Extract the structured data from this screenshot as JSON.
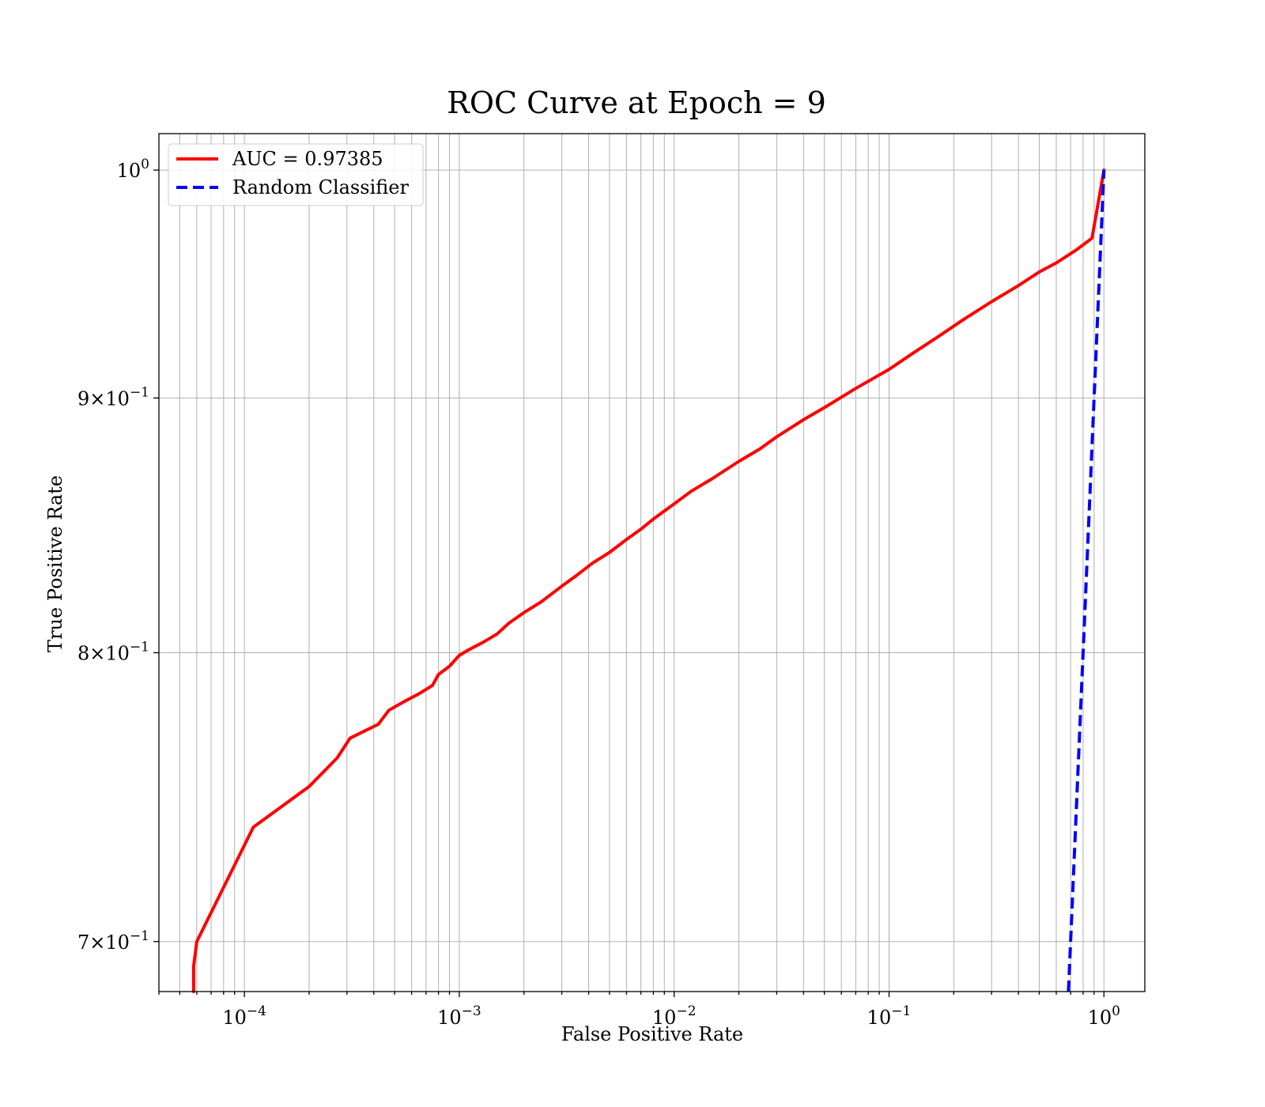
{
  "chart_data": {
    "type": "line",
    "title": "ROC Curve at Epoch = 9",
    "xlabel": "False Positive Rate",
    "ylabel": "True Positive Rate",
    "xscale": "log",
    "yscale": "log",
    "xlim": [
      4e-05,
      1.55
    ],
    "ylim": [
      0.684,
      1.017
    ],
    "x_ticks": [
      {
        "value": 0.0001,
        "base": "10",
        "exp": "−4"
      },
      {
        "value": 0.001,
        "base": "10",
        "exp": "−3"
      },
      {
        "value": 0.01,
        "base": "10",
        "exp": "−2"
      },
      {
        "value": 0.1,
        "base": "10",
        "exp": "−1"
      },
      {
        "value": 1,
        "base": "10",
        "exp": "0"
      }
    ],
    "y_ticks": [
      {
        "value": 0.7,
        "base": "7×10",
        "exp": "−1"
      },
      {
        "value": 0.8,
        "base": "8×10",
        "exp": "−1"
      },
      {
        "value": 0.9,
        "base": "9×10",
        "exp": "−1"
      },
      {
        "value": 1.0,
        "base": "10",
        "exp": "0"
      }
    ],
    "grid": true,
    "legend_position": "top-left",
    "series": [
      {
        "name": "AUC = 0.97385",
        "color": "#ff0000",
        "style": "solid",
        "points": [
          [
            5.8e-05,
            0.684
          ],
          [
            5.8e-05,
            0.692
          ],
          [
            6e-05,
            0.7
          ],
          [
            0.00011,
            0.738
          ],
          [
            0.0002,
            0.752
          ],
          [
            0.00027,
            0.762
          ],
          [
            0.00031,
            0.769
          ],
          [
            0.00042,
            0.774
          ],
          [
            0.00047,
            0.779
          ],
          [
            0.00055,
            0.782
          ],
          [
            0.00065,
            0.785
          ],
          [
            0.00075,
            0.788
          ],
          [
            0.0008,
            0.792
          ],
          [
            0.0009,
            0.795
          ],
          [
            0.001,
            0.799
          ],
          [
            0.0011,
            0.801
          ],
          [
            0.0013,
            0.804
          ],
          [
            0.0015,
            0.807
          ],
          [
            0.0017,
            0.811
          ],
          [
            0.002,
            0.815
          ],
          [
            0.0024,
            0.819
          ],
          [
            0.003,
            0.825
          ],
          [
            0.0035,
            0.829
          ],
          [
            0.0042,
            0.834
          ],
          [
            0.005,
            0.838
          ],
          [
            0.006,
            0.843
          ],
          [
            0.007,
            0.847
          ],
          [
            0.008,
            0.851
          ],
          [
            0.01,
            0.857
          ],
          [
            0.012,
            0.862
          ],
          [
            0.015,
            0.867
          ],
          [
            0.02,
            0.874
          ],
          [
            0.025,
            0.879
          ],
          [
            0.03,
            0.884
          ],
          [
            0.04,
            0.891
          ],
          [
            0.05,
            0.896
          ],
          [
            0.07,
            0.904
          ],
          [
            0.1,
            0.912
          ],
          [
            0.13,
            0.919
          ],
          [
            0.17,
            0.926
          ],
          [
            0.22,
            0.933
          ],
          [
            0.3,
            0.941
          ],
          [
            0.4,
            0.948
          ],
          [
            0.5,
            0.954
          ],
          [
            0.6,
            0.958
          ],
          [
            0.75,
            0.964
          ],
          [
            0.88,
            0.969
          ],
          [
            1.0,
            1.0
          ]
        ]
      },
      {
        "name": "Random Classifier",
        "color": "#0000ff",
        "style": "dashed",
        "points": [
          [
            0.684,
            0.684
          ],
          [
            1.0,
            1.0
          ]
        ]
      }
    ]
  }
}
